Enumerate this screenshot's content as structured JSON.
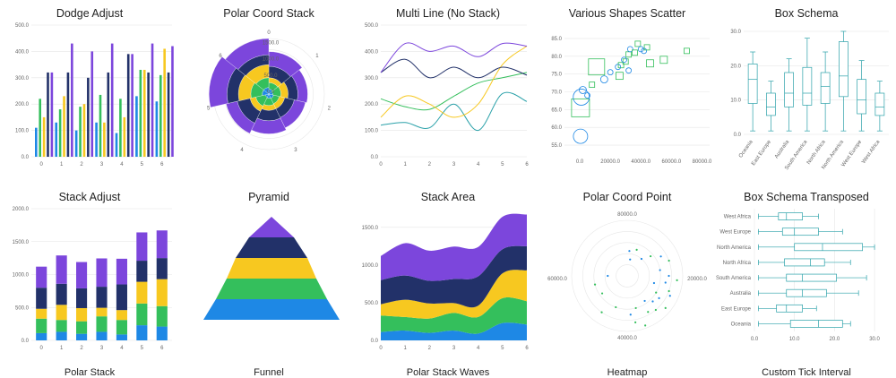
{
  "colors": {
    "blue": "#1e88e5",
    "green": "#34bf5c",
    "yellow": "#f7c820",
    "navy": "#223169",
    "purple": "#7c46dc",
    "teal": "#2aa1a9",
    "gridline": "#e6e6e6",
    "axis": "#bbbbbb"
  },
  "chart_data": [
    {
      "id": "dodge",
      "type": "bar",
      "title": "Dodge Adjust",
      "categories": [
        "0",
        "1",
        "2",
        "3",
        "4",
        "5",
        "6"
      ],
      "ylim": [
        0,
        500
      ],
      "yticks": [
        "0.0",
        "100.0",
        "200.0",
        "300.0",
        "400.0",
        "500.0"
      ],
      "series": [
        {
          "color": "blue",
          "values": [
            110,
            130,
            100,
            130,
            90,
            230,
            210
          ]
        },
        {
          "color": "green",
          "values": [
            220,
            180,
            190,
            235,
            220,
            330,
            310
          ]
        },
        {
          "color": "yellow",
          "values": [
            150,
            230,
            200,
            130,
            150,
            330,
            410
          ]
        },
        {
          "color": "navy",
          "values": [
            320,
            320,
            300,
            320,
            390,
            320,
            320
          ]
        },
        {
          "color": "purple",
          "values": [
            320,
            430,
            400,
            430,
            390,
            430,
            420
          ]
        }
      ]
    },
    {
      "id": "polarstack",
      "type": "bar",
      "title": "Polar Coord Stack",
      "categories": [
        "0",
        "1",
        "2",
        "3",
        "4",
        "5",
        "6"
      ],
      "rticks": [
        "0.0",
        "500.0",
        "1000.0",
        "1500.0"
      ],
      "series": [
        {
          "color": "blue",
          "values": [
            150,
            120,
            150,
            130,
            110,
            200,
            200
          ]
        },
        {
          "color": "green",
          "values": [
            200,
            250,
            180,
            220,
            300,
            350,
            300
          ]
        },
        {
          "color": "yellow",
          "values": [
            150,
            220,
            170,
            150,
            180,
            380,
            400
          ]
        },
        {
          "color": "navy",
          "values": [
            350,
            300,
            300,
            320,
            400,
            350,
            300
          ]
        },
        {
          "color": "purple",
          "values": [
            450,
            300,
            350,
            400,
            350,
            550,
            500
          ]
        }
      ]
    },
    {
      "id": "multiline",
      "type": "line",
      "title": "Multi Line (No Stack)",
      "x": [
        0,
        1,
        2,
        3,
        4,
        5,
        6
      ],
      "ylim": [
        0,
        500
      ],
      "yticks": [
        "0.0",
        "100.0",
        "200.0",
        "300.0",
        "400.0",
        "500.0"
      ],
      "series": [
        {
          "color": "teal",
          "values": [
            120,
            130,
            110,
            200,
            100,
            240,
            210
          ]
        },
        {
          "color": "green",
          "values": [
            220,
            190,
            180,
            230,
            280,
            300,
            320
          ]
        },
        {
          "color": "yellow",
          "values": [
            150,
            230,
            200,
            150,
            200,
            350,
            420
          ]
        },
        {
          "color": "navy",
          "values": [
            320,
            370,
            300,
            340,
            300,
            340,
            310
          ]
        },
        {
          "color": "purple",
          "values": [
            320,
            430,
            400,
            420,
            380,
            430,
            420
          ]
        }
      ]
    },
    {
      "id": "scatter",
      "type": "scatter",
      "title": "Various Shapes Scatter",
      "xlim": [
        -10000,
        85000
      ],
      "ylim": [
        53,
        87
      ],
      "xticks": [
        "0.0",
        "20000.0",
        "40000.0",
        "60000.0",
        "80000.0"
      ],
      "yticks": [
        "55.0",
        "60.0",
        "65.0",
        "70.0",
        "75.0",
        "80.0",
        "85.0"
      ],
      "points": [
        {
          "x": 500,
          "y": 57.5,
          "shape": "circle",
          "size": 8,
          "color": "blue"
        },
        {
          "x": 500,
          "y": 65.5,
          "shape": "square",
          "size": 10,
          "color": "green"
        },
        {
          "x": 1000,
          "y": 68.5,
          "shape": "circle",
          "size": 9,
          "color": "blue"
        },
        {
          "x": 2000,
          "y": 70.5,
          "shape": "circle",
          "size": 4,
          "color": "blue"
        },
        {
          "x": 5000,
          "y": 69,
          "shape": "circle",
          "size": 3,
          "color": "blue"
        },
        {
          "x": 8000,
          "y": 72,
          "shape": "square",
          "size": 3,
          "color": "green"
        },
        {
          "x": 11000,
          "y": 77,
          "shape": "square",
          "size": 9,
          "color": "green"
        },
        {
          "x": 16000,
          "y": 73.5,
          "shape": "circle",
          "size": 4,
          "color": "blue"
        },
        {
          "x": 20000,
          "y": 75.5,
          "shape": "circle",
          "size": 3,
          "color": "blue"
        },
        {
          "x": 25000,
          "y": 77,
          "shape": "circle",
          "size": 3,
          "color": "blue"
        },
        {
          "x": 26000,
          "y": 74.5,
          "shape": "square",
          "size": 4,
          "color": "green"
        },
        {
          "x": 27000,
          "y": 77.5,
          "shape": "square",
          "size": 3,
          "color": "green"
        },
        {
          "x": 30000,
          "y": 78.5,
          "shape": "square",
          "size": 3,
          "color": "green"
        },
        {
          "x": 32000,
          "y": 80.5,
          "shape": "square",
          "size": 3,
          "color": "green"
        },
        {
          "x": 33000,
          "y": 82,
          "shape": "circle",
          "size": 3,
          "color": "blue"
        },
        {
          "x": 36000,
          "y": 81,
          "shape": "square",
          "size": 3,
          "color": "green"
        },
        {
          "x": 38000,
          "y": 83.5,
          "shape": "square",
          "size": 3,
          "color": "green"
        },
        {
          "x": 40000,
          "y": 82,
          "shape": "circle",
          "size": 3,
          "color": "blue"
        },
        {
          "x": 42000,
          "y": 81.5,
          "shape": "circle",
          "size": 3,
          "color": "blue"
        },
        {
          "x": 44000,
          "y": 82.5,
          "shape": "square",
          "size": 3,
          "color": "green"
        },
        {
          "x": 46000,
          "y": 78,
          "shape": "square",
          "size": 4,
          "color": "green"
        },
        {
          "x": 55000,
          "y": 79,
          "shape": "square",
          "size": 4,
          "color": "green"
        },
        {
          "x": 70000,
          "y": 81.5,
          "shape": "square",
          "size": 3,
          "color": "green"
        },
        {
          "x": 32000,
          "y": 76,
          "shape": "circle",
          "size": 3,
          "color": "blue"
        },
        {
          "x": 29000,
          "y": 79,
          "shape": "circle",
          "size": 3,
          "color": "blue"
        }
      ]
    },
    {
      "id": "boxschema",
      "type": "box",
      "title": "Box Schema",
      "categories": [
        "Oceania",
        "East Europe",
        "Australia",
        "South America",
        "North Africa",
        "North America",
        "West Europe",
        "West Africa"
      ],
      "ylim": [
        0,
        30
      ],
      "yticks": [
        "0.0",
        "10.0",
        "20.0",
        "30.0"
      ],
      "boxes": [
        [
          1,
          9,
          16,
          20.5,
          24
        ],
        [
          1,
          5.5,
          8,
          12,
          15.5
        ],
        [
          1,
          8,
          12,
          18,
          22
        ],
        [
          1,
          8.5,
          12,
          19.5,
          28
        ],
        [
          1,
          9,
          14,
          18,
          24
        ],
        [
          1,
          11,
          17,
          27,
          30
        ],
        [
          1,
          6,
          10,
          16,
          21.5
        ],
        [
          1,
          5.5,
          8,
          12,
          15.5
        ]
      ],
      "color": "teal"
    },
    {
      "id": "stack",
      "type": "bar",
      "title": "Stack Adjust",
      "categories": [
        "0",
        "1",
        "2",
        "3",
        "4",
        "5",
        "6"
      ],
      "ylim": [
        0,
        2000
      ],
      "yticks": [
        "0.0",
        "500.0",
        "1000.0",
        "1500.0",
        "2000.0"
      ],
      "series": [
        {
          "color": "blue",
          "values": [
            110,
            130,
            100,
            130,
            90,
            230,
            210
          ]
        },
        {
          "color": "green",
          "values": [
            220,
            180,
            190,
            235,
            220,
            330,
            310
          ]
        },
        {
          "color": "yellow",
          "values": [
            150,
            230,
            200,
            130,
            150,
            330,
            410
          ]
        },
        {
          "color": "navy",
          "values": [
            320,
            320,
            300,
            320,
            390,
            320,
            320
          ]
        },
        {
          "color": "purple",
          "values": [
            320,
            430,
            400,
            430,
            390,
            430,
            420
          ]
        }
      ]
    },
    {
      "id": "pyramid",
      "type": "bar",
      "title": "Pyramid",
      "series": [
        {
          "color": "purple",
          "values": [
            1
          ]
        },
        {
          "color": "navy",
          "values": [
            1
          ]
        },
        {
          "color": "yellow",
          "values": [
            1
          ]
        },
        {
          "color": "green",
          "values": [
            1
          ]
        },
        {
          "color": "blue",
          "values": [
            1
          ]
        }
      ]
    },
    {
      "id": "stackarea",
      "type": "area",
      "title": "Stack Area",
      "x": [
        0,
        1,
        2,
        3,
        4,
        5,
        6
      ],
      "ylim": [
        0,
        1700
      ],
      "yticks": [
        "0.0",
        "500.0",
        "1000.0",
        "1500.0"
      ],
      "series": [
        {
          "color": "blue",
          "values": [
            110,
            130,
            100,
            130,
            90,
            230,
            210
          ]
        },
        {
          "color": "green",
          "values": [
            220,
            180,
            190,
            235,
            220,
            330,
            310
          ]
        },
        {
          "color": "yellow",
          "values": [
            150,
            230,
            200,
            130,
            150,
            330,
            410
          ]
        },
        {
          "color": "navy",
          "values": [
            320,
            320,
            300,
            320,
            390,
            320,
            320
          ]
        },
        {
          "color": "purple",
          "values": [
            320,
            430,
            400,
            430,
            390,
            430,
            420
          ]
        }
      ]
    },
    {
      "id": "polarpoint",
      "type": "scatter",
      "title": "Polar Coord Point",
      "angle_ticks": [
        "80000.0",
        "20000.0",
        "40000.0",
        "60000.0"
      ],
      "points": [
        {
          "a": 170,
          "r": 0.85,
          "color": "green"
        },
        {
          "a": 175,
          "r": 0.7,
          "color": "blue"
        },
        {
          "a": 165,
          "r": 0.6,
          "color": "green"
        },
        {
          "a": 160,
          "r": 0.95,
          "color": "green"
        },
        {
          "a": 150,
          "r": 0.75,
          "color": "green"
        },
        {
          "a": 145,
          "r": 0.55,
          "color": "blue"
        },
        {
          "a": 140,
          "r": 0.8,
          "color": "green"
        },
        {
          "a": 135,
          "r": 0.65,
          "color": "blue"
        },
        {
          "a": 130,
          "r": 0.9,
          "color": "green"
        },
        {
          "a": 125,
          "r": 0.7,
          "color": "blue"
        },
        {
          "a": 120,
          "r": 0.6,
          "color": "green"
        },
        {
          "a": 115,
          "r": 0.85,
          "color": "blue"
        },
        {
          "a": 110,
          "r": 0.8,
          "color": "green"
        },
        {
          "a": 105,
          "r": 0.5,
          "color": "blue"
        },
        {
          "a": 100,
          "r": 0.7,
          "color": "blue"
        },
        {
          "a": 95,
          "r": 0.9,
          "color": "green"
        },
        {
          "a": 90,
          "r": 0.75,
          "color": "blue"
        },
        {
          "a": 80,
          "r": 0.6,
          "color": "blue"
        },
        {
          "a": 70,
          "r": 0.8,
          "color": "green"
        },
        {
          "a": 60,
          "r": 0.7,
          "color": "blue"
        },
        {
          "a": 50,
          "r": 0.55,
          "color": "green"
        },
        {
          "a": 40,
          "r": 0.4,
          "color": "blue"
        },
        {
          "a": 20,
          "r": 0.5,
          "color": "green"
        },
        {
          "a": 10,
          "r": 0.3,
          "color": "blue"
        },
        {
          "a": 5,
          "r": 0.45,
          "color": "blue"
        },
        {
          "a": 200,
          "r": 0.6,
          "color": "green"
        },
        {
          "a": 215,
          "r": 0.8,
          "color": "green"
        },
        {
          "a": 235,
          "r": 0.55,
          "color": "green"
        },
        {
          "a": 255,
          "r": 0.6,
          "color": "green"
        },
        {
          "a": 270,
          "r": 0.35,
          "color": "blue"
        }
      ]
    },
    {
      "id": "boxtransposed",
      "type": "box",
      "title": "Box Schema Transposed",
      "categories": [
        "West Africa",
        "West Europe",
        "North America",
        "North Africa",
        "South America",
        "Australia",
        "East Europe",
        "Oceania"
      ],
      "xlim": [
        0,
        32
      ],
      "xticks": [
        "0.0",
        "10.0",
        "20.0",
        "30.0"
      ],
      "boxes": [
        [
          1,
          6,
          8,
          12,
          16
        ],
        [
          1,
          7,
          10,
          16,
          22
        ],
        [
          1,
          10,
          17,
          27,
          30
        ],
        [
          1,
          7.5,
          14,
          17.5,
          24
        ],
        [
          1,
          8,
          12,
          20.5,
          28
        ],
        [
          1,
          8,
          12,
          18,
          26
        ],
        [
          1,
          5.5,
          8,
          12,
          15.5
        ],
        [
          1,
          9,
          16,
          22,
          24
        ]
      ],
      "color": "teal"
    }
  ],
  "cut_titles": [
    "Polar Stack",
    "Funnel",
    "Polar Stack Waves",
    "Heatmap",
    "Custom Tick Interval"
  ]
}
